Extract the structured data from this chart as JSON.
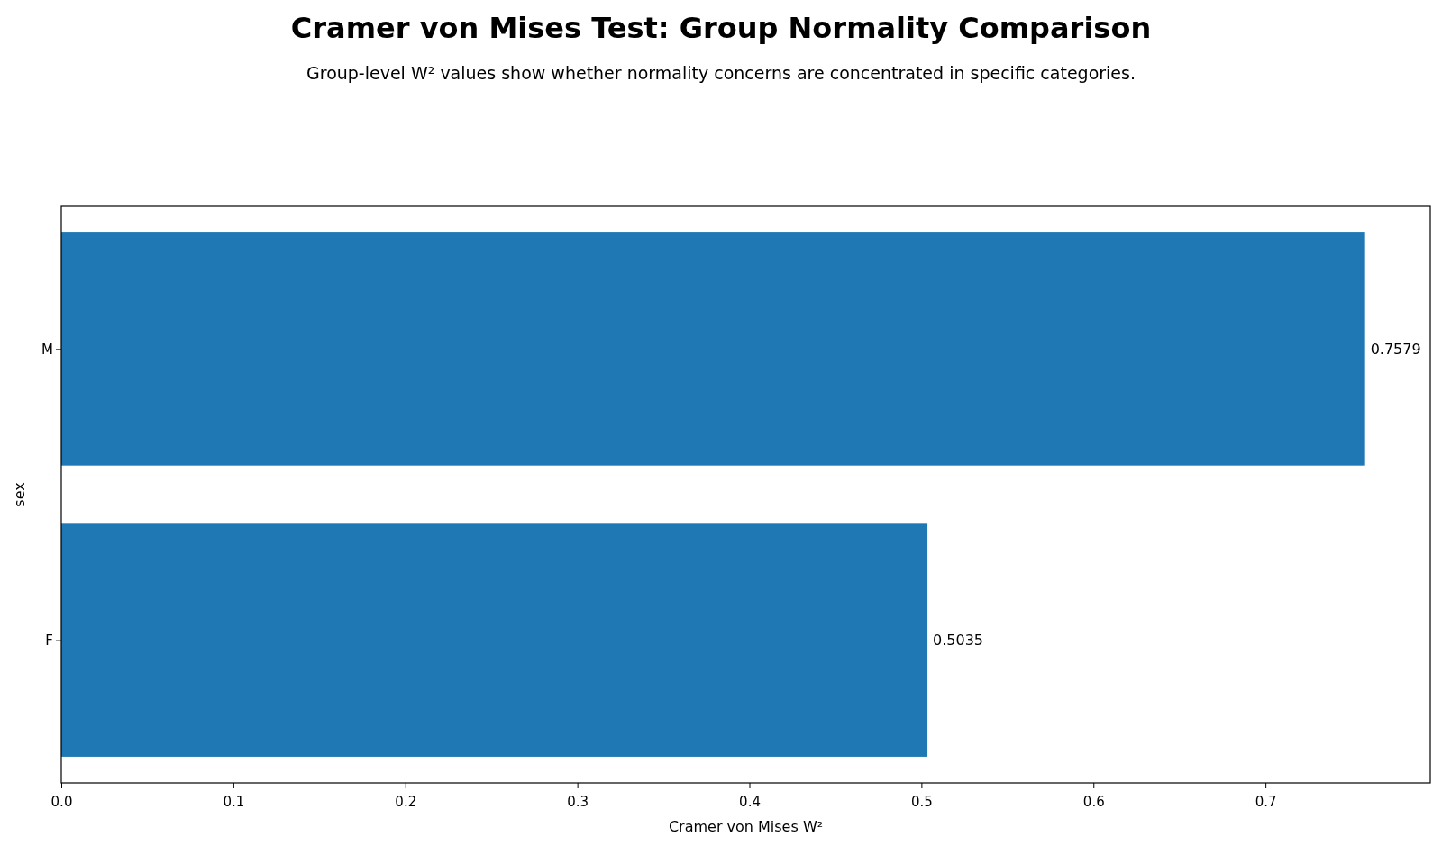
{
  "chart_data": {
    "type": "bar",
    "orientation": "horizontal",
    "title": "Cramer von Mises Test: Group Normality Comparison",
    "subtitle": "Group-level W² values show whether normality concerns are concentrated in specific categories.",
    "xlabel": "Cramer von Mises W²",
    "ylabel": "sex",
    "categories": [
      "M",
      "F"
    ],
    "values": [
      0.7579,
      0.5035
    ],
    "color": "#1f77b4",
    "xlim": [
      0,
      0.7958
    ],
    "xticks": [
      {
        "value": 0,
        "label": "0.0"
      },
      0.1,
      0.2,
      0.3,
      0.4,
      0.5,
      0.6,
      0.7
    ],
    "data_labels": true,
    "grid": false
  }
}
